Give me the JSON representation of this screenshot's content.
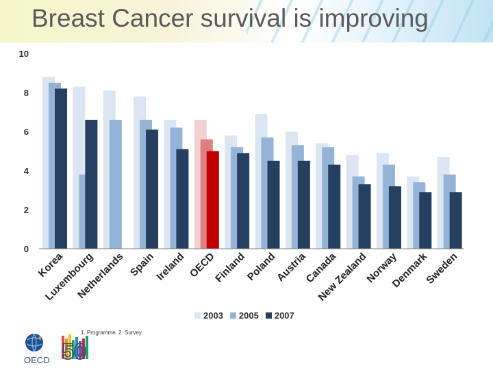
{
  "slide": {
    "title": "Breast Cancer survival is improving",
    "footnote": "1. Programme. 2. Survey.",
    "logo_text": "OECD",
    "logo_number": "50"
  },
  "colors": {
    "y2003": "#dce6f2",
    "y2005": "#95b3d7",
    "y2007": "#243f60",
    "oecd_2003": "#f2d0d0",
    "oecd_2005": "#e07f7f",
    "oecd_2007": "#c00000",
    "axis": "#7f7f7f"
  },
  "chart_data": {
    "type": "bar",
    "title": "",
    "xlabel": "",
    "ylabel": "",
    "ylim": [
      0,
      10
    ],
    "yticks": [
      0,
      2,
      4,
      6,
      8,
      10
    ],
    "categories": [
      "Korea",
      "Luxembourg",
      "Netherlands",
      "Spain",
      "Ireland",
      "OECD",
      "Finland",
      "Poland",
      "Austria",
      "Canada",
      "New Zealand",
      "Norway",
      "Denmark",
      "Sweden"
    ],
    "highlight_category": "OECD",
    "series": [
      {
        "name": "2003",
        "values": [
          8.8,
          8.3,
          8.1,
          7.8,
          6.6,
          6.6,
          5.8,
          6.9,
          6.0,
          5.4,
          4.8,
          4.9,
          3.7,
          4.7
        ]
      },
      {
        "name": "2005",
        "values": [
          8.5,
          3.8,
          6.6,
          6.6,
          6.2,
          5.6,
          5.2,
          5.7,
          5.3,
          5.2,
          3.7,
          4.3,
          3.4,
          3.8
        ]
      },
      {
        "name": "2007",
        "values": [
          8.2,
          6.6,
          null,
          6.1,
          5.1,
          5.0,
          4.9,
          4.5,
          4.5,
          4.3,
          3.3,
          3.2,
          2.9,
          2.9
        ]
      }
    ],
    "legend": [
      "2003",
      "2005",
      "2007"
    ],
    "legend_position": "bottom-center",
    "grid": false
  }
}
